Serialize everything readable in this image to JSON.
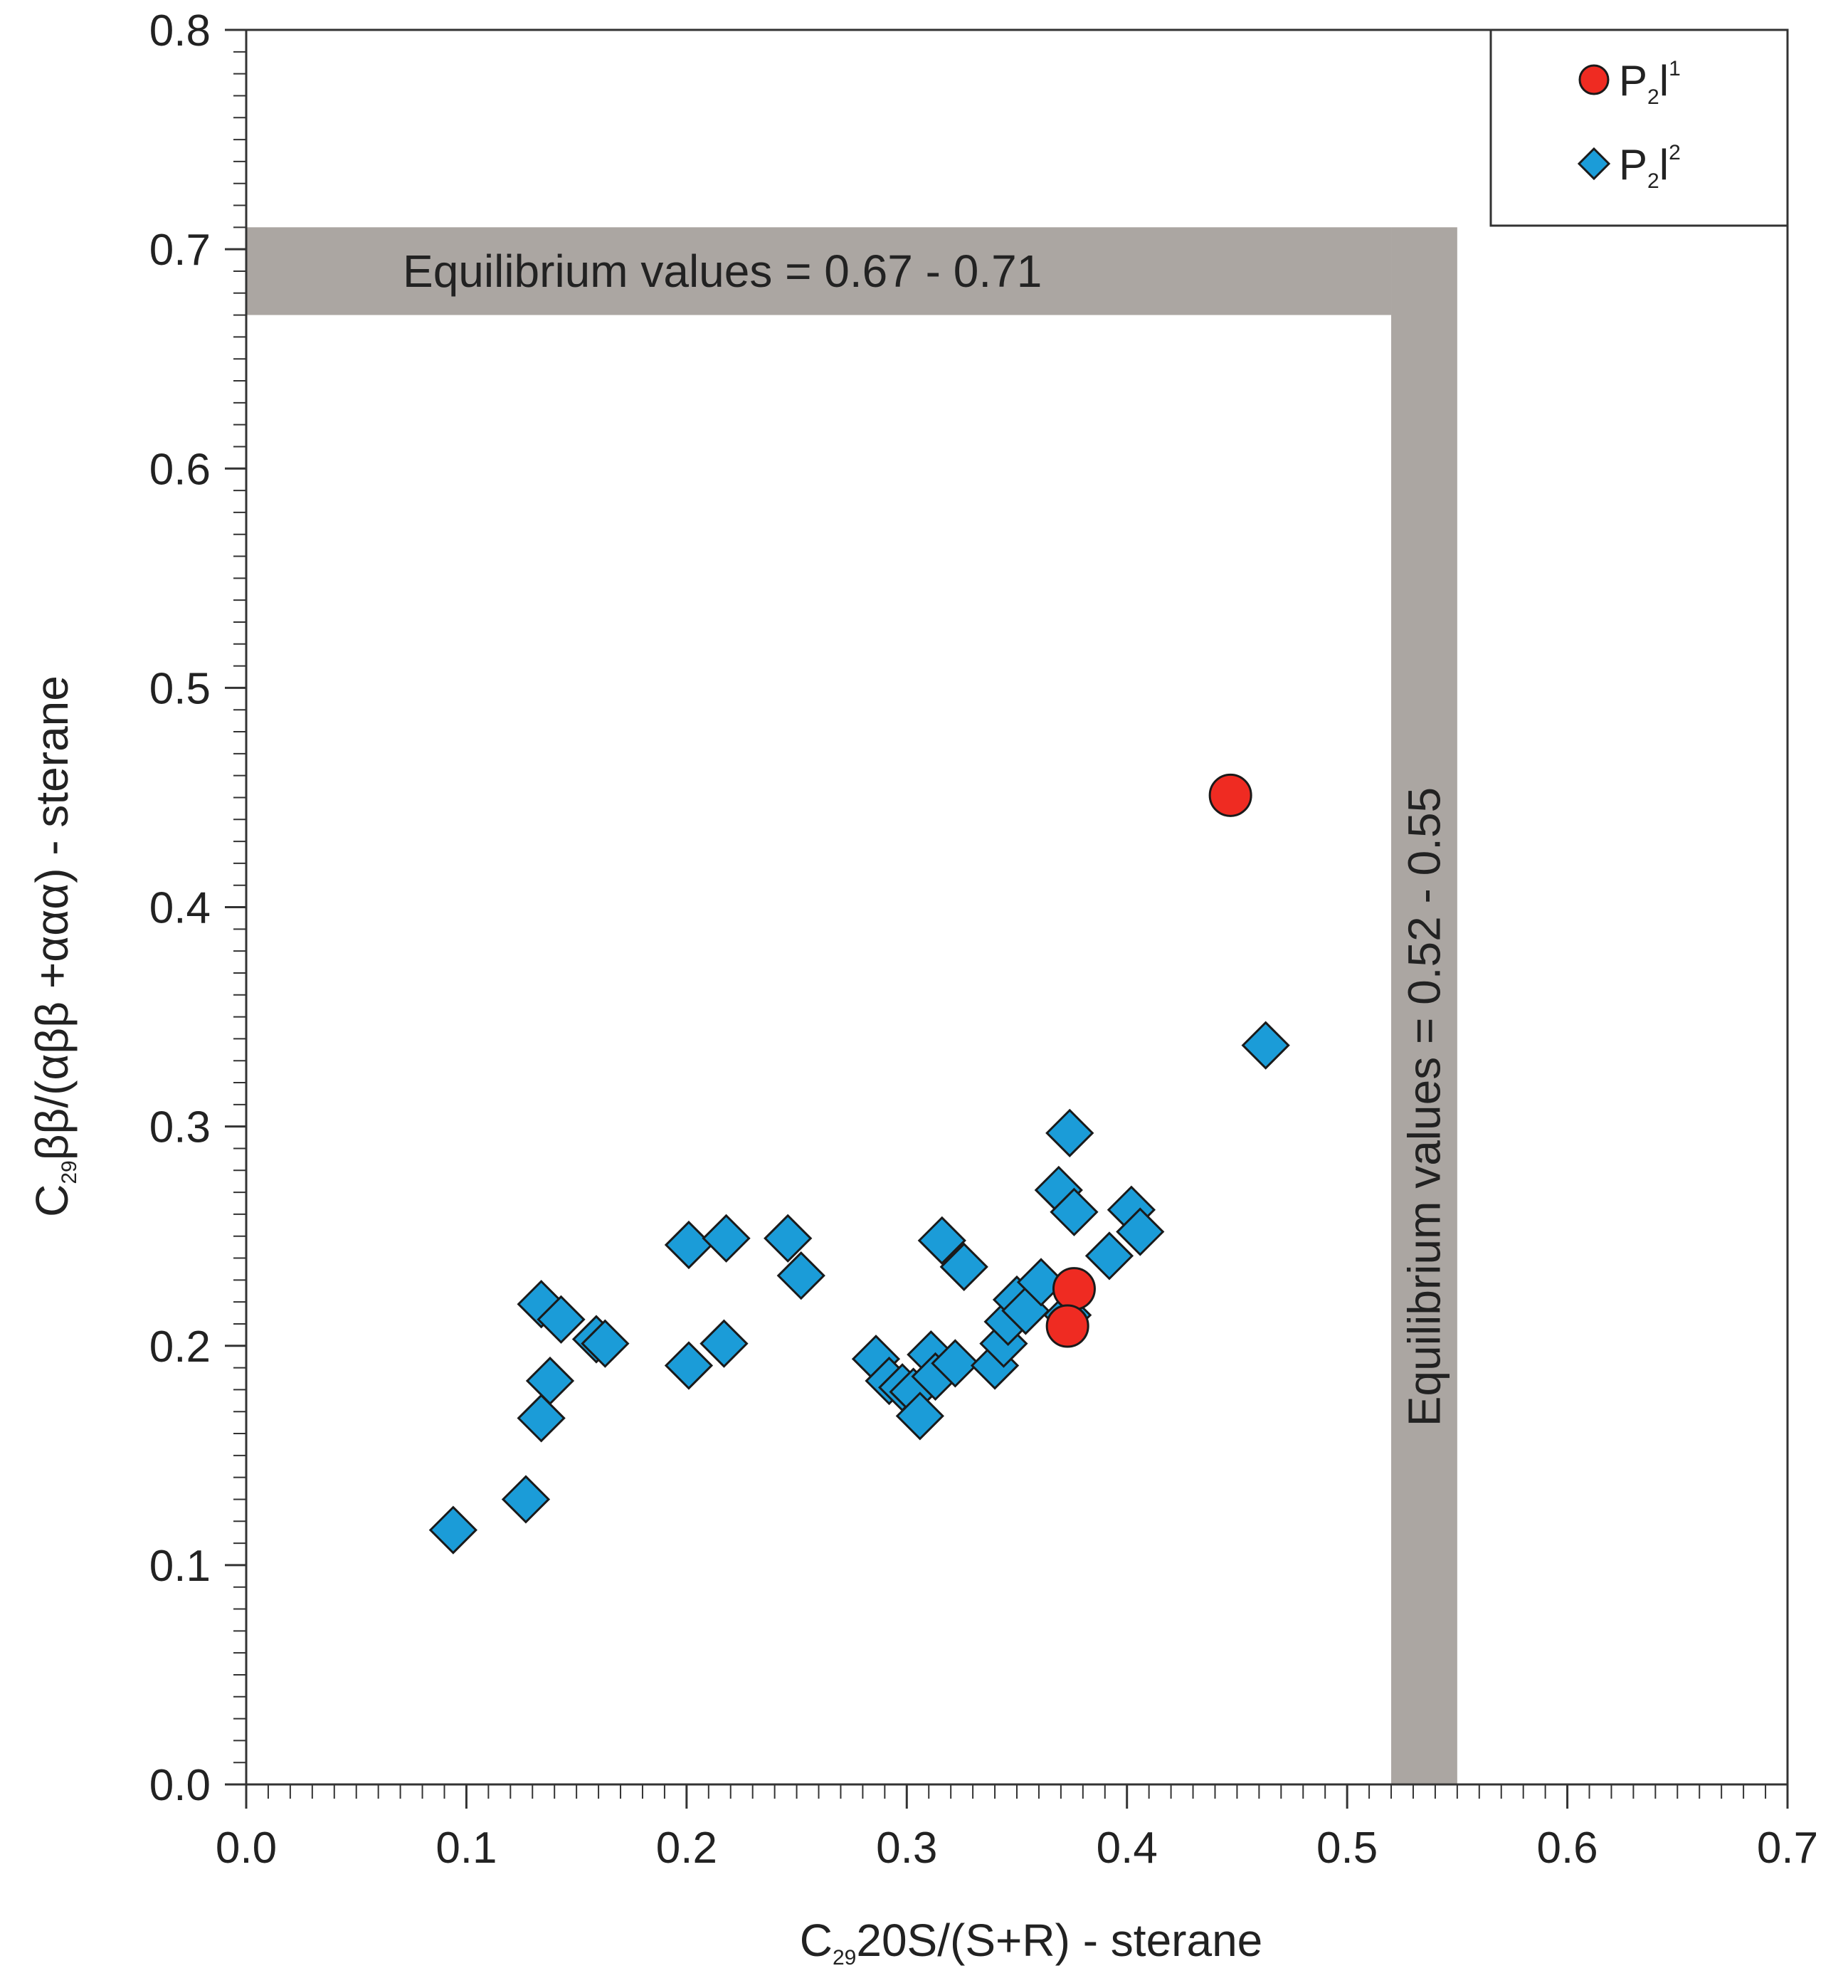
{
  "chart_data": {
    "type": "scatter",
    "xlabel": {
      "main": "C",
      "sub": "29",
      "rest": "20S/(S+R) - sterane"
    },
    "ylabel": {
      "main": "C",
      "sub": "29",
      "rest": "ββ/(αββ +ααα) - sterane"
    },
    "xlim": [
      0.0,
      0.7
    ],
    "ylim": [
      0.0,
      0.8
    ],
    "x_major_ticks": [
      0.0,
      0.1,
      0.2,
      0.3,
      0.4,
      0.5,
      0.6,
      0.7
    ],
    "y_major_ticks": [
      0.0,
      0.1,
      0.2,
      0.3,
      0.4,
      0.5,
      0.6,
      0.7,
      0.8
    ],
    "x_tick_labels": [
      "0.0",
      "0.1",
      "0.2",
      "0.3",
      "0.4",
      "0.5",
      "0.6",
      "0.7"
    ],
    "y_tick_labels": [
      "0.0",
      "0.1",
      "0.2",
      "0.3",
      "0.4",
      "0.5",
      "0.6",
      "0.7",
      "0.8"
    ],
    "grid": false,
    "legend_position": "top-right",
    "equilibrium_bands": [
      {
        "axis": "y",
        "range": [
          0.67,
          0.71
        ],
        "label": "Equilibrium values = 0.67 - 0.71",
        "color": "#aba6a2"
      },
      {
        "axis": "x",
        "range": [
          0.52,
          0.55
        ],
        "label": "Equilibrium values = 0.52 - 0.55",
        "color": "#aba6a2"
      }
    ],
    "series": [
      {
        "legend": {
          "main": "P",
          "sub": "2",
          "mid": "l",
          "sup": "1"
        },
        "marker": "circle",
        "color": "#ef2b22",
        "points": [
          [
            0.447,
            0.451
          ],
          [
            0.376,
            0.226
          ],
          [
            0.373,
            0.209
          ]
        ]
      },
      {
        "legend": {
          "main": "P",
          "sub": "2",
          "mid": "l",
          "sup": "2"
        },
        "marker": "diamond",
        "color": "#1b9cd8",
        "points": [
          [
            0.094,
            0.116
          ],
          [
            0.127,
            0.13
          ],
          [
            0.134,
            0.167
          ],
          [
            0.138,
            0.184
          ],
          [
            0.134,
            0.219
          ],
          [
            0.143,
            0.212
          ],
          [
            0.159,
            0.203
          ],
          [
            0.163,
            0.201
          ],
          [
            0.201,
            0.191
          ],
          [
            0.201,
            0.246
          ],
          [
            0.218,
            0.249
          ],
          [
            0.217,
            0.201
          ],
          [
            0.246,
            0.249
          ],
          [
            0.252,
            0.232
          ],
          [
            0.286,
            0.194
          ],
          [
            0.292,
            0.184
          ],
          [
            0.298,
            0.181
          ],
          [
            0.303,
            0.179
          ],
          [
            0.306,
            0.168
          ],
          [
            0.311,
            0.196
          ],
          [
            0.313,
            0.186
          ],
          [
            0.316,
            0.248
          ],
          [
            0.322,
            0.192
          ],
          [
            0.326,
            0.236
          ],
          [
            0.34,
            0.191
          ],
          [
            0.344,
            0.201
          ],
          [
            0.346,
            0.211
          ],
          [
            0.35,
            0.221
          ],
          [
            0.354,
            0.216
          ],
          [
            0.361,
            0.229
          ],
          [
            0.369,
            0.271
          ],
          [
            0.373,
            0.214
          ],
          [
            0.374,
            0.297
          ],
          [
            0.376,
            0.261
          ],
          [
            0.392,
            0.241
          ],
          [
            0.402,
            0.262
          ],
          [
            0.406,
            0.252
          ],
          [
            0.463,
            0.337
          ]
        ]
      }
    ]
  }
}
